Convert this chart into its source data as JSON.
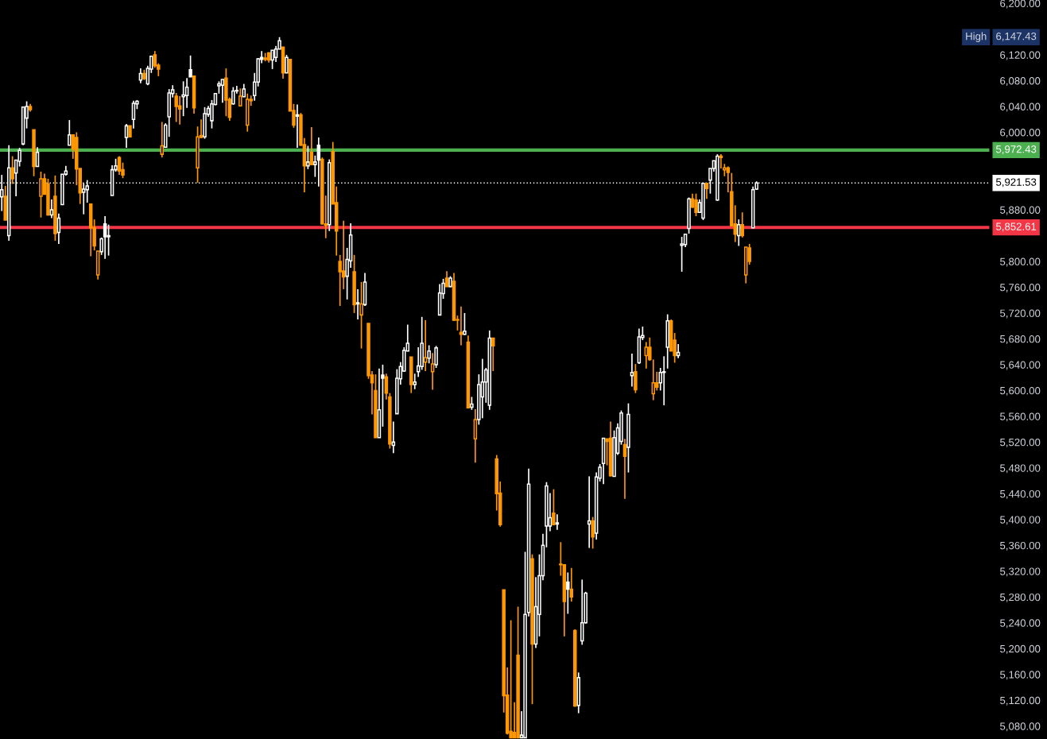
{
  "chart_data": {
    "type": "candlestick",
    "categories": [
      null,
      null,
      null,
      null,
      null,
      null,
      null,
      null,
      null,
      null,
      null,
      null,
      null,
      null,
      null,
      null,
      null,
      null,
      null,
      null,
      null,
      null,
      null,
      null,
      null,
      null,
      null,
      null,
      null,
      null,
      null,
      null,
      null,
      null,
      null,
      null,
      null,
      null,
      null,
      null,
      null,
      null,
      null,
      null,
      null,
      null,
      null,
      null,
      null,
      null,
      null,
      null,
      null,
      null,
      null,
      null,
      null,
      null,
      null,
      null,
      null,
      null,
      null,
      null,
      null,
      null,
      null,
      null,
      null,
      null,
      null,
      null,
      null,
      null,
      null,
      null,
      null,
      null,
      null,
      null,
      null,
      null,
      null,
      null,
      null,
      null,
      null,
      null,
      null,
      null,
      null,
      null,
      null,
      null,
      null,
      null,
      null,
      null,
      null,
      null,
      null,
      null,
      null,
      null,
      null,
      null,
      null,
      null,
      null,
      null,
      null,
      null,
      null,
      null,
      null,
      null,
      null,
      null,
      null,
      null,
      null,
      null,
      null,
      null,
      null,
      null,
      null,
      null,
      null,
      null,
      null,
      null,
      null,
      null,
      null,
      null,
      null,
      null,
      null,
      null,
      null,
      null,
      null,
      null,
      null,
      null,
      null,
      null,
      null,
      null,
      null,
      null,
      null,
      null,
      null,
      null,
      null,
      null,
      null,
      null,
      null,
      null,
      null,
      null,
      null,
      null,
      null,
      null,
      null,
      null,
      null,
      null,
      null,
      null,
      null,
      null,
      null,
      null,
      null,
      null,
      null,
      null,
      null,
      null,
      null,
      null,
      null,
      null,
      null,
      null,
      null,
      null,
      null,
      null,
      null,
      null,
      null,
      null,
      null,
      null,
      null,
      null,
      null,
      null,
      null,
      null,
      null,
      null,
      null,
      null,
      null,
      null,
      null,
      null,
      null,
      null,
      null,
      null,
      null,
      null,
      null,
      null,
      null,
      null,
      null,
      null,
      null,
      null,
      null,
      null,
      null,
      null,
      null,
      null,
      null,
      null,
      null,
      null,
      null,
      null,
      null,
      null,
      null,
      null,
      null,
      null,
      null,
      null,
      null,
      null,
      null,
      null,
      null,
      null,
      null,
      null,
      null,
      null,
      null,
      null,
      null,
      null,
      null,
      null,
      null,
      null,
      null,
      null,
      null,
      null,
      null,
      null,
      null,
      null,
      null,
      null,
      null,
      null
    ],
    "ohlc": [
      [
        5900,
        5934,
        5878,
        5911
      ],
      [
        5901,
        5917,
        5864,
        5864
      ],
      [
        5840,
        5980,
        5832,
        5945
      ],
      [
        5945,
        5963,
        5920,
        5928
      ],
      [
        5937,
        5957,
        5901,
        5957
      ],
      [
        5955,
        5976,
        5947,
        5972
      ],
      [
        5982,
        6039,
        5980,
        6039
      ],
      [
        6022,
        6048,
        6006,
        6040
      ],
      [
        6040,
        6044,
        6032,
        6035
      ],
      [
        6004,
        6004,
        5932,
        5947
      ],
      [
        5947,
        5977,
        5947,
        5969
      ],
      [
        5901,
        5939,
        5868,
        5928
      ],
      [
        5928,
        5936,
        5904,
        5904
      ],
      [
        5920,
        5928,
        5871,
        5872
      ],
      [
        5872,
        5896,
        5867,
        5880
      ],
      [
        5901,
        5933,
        5832,
        5843
      ],
      [
        5845,
        5874,
        5827,
        5867
      ],
      [
        5888,
        5935,
        5888,
        5935
      ],
      [
        5935,
        5948,
        5933,
        5940
      ],
      [
        5980,
        6019,
        5980,
        5996
      ],
      [
        5996,
        5996,
        5959,
        5974
      ],
      [
        5992,
        6000,
        5918,
        5943
      ],
      [
        5944,
        5944,
        5889,
        5906
      ],
      [
        5907,
        5921,
        5873,
        5912
      ],
      [
        5911,
        5926,
        5891,
        5917
      ],
      [
        5889,
        5889,
        5808,
        5852
      ],
      [
        5852,
        5865,
        5817,
        5824
      ],
      [
        5779,
        5816,
        5772,
        5816
      ],
      [
        5815,
        5837,
        5810,
        5835
      ],
      [
        5858,
        5870,
        5804,
        5838
      ],
      [
        5838,
        5857,
        5809,
        5840
      ],
      [
        5902,
        5949,
        5902,
        5942
      ],
      [
        5942,
        5959,
        5939,
        5948
      ],
      [
        5961,
        5963,
        5934,
        5940
      ],
      [
        5942,
        5953,
        5929,
        5934
      ],
      [
        5992,
        6013,
        5976,
        6010
      ],
      [
        6010,
        6010,
        5993,
        5993
      ],
      [
        6020,
        6049,
        6006,
        6045
      ],
      [
        6044,
        6050,
        6036,
        6048
      ],
      [
        6081,
        6099,
        6076,
        6091
      ],
      [
        6091,
        6097,
        6081,
        6083
      ],
      [
        6075,
        6103,
        6073,
        6099
      ],
      [
        6098,
        6118,
        6092,
        6118
      ],
      [
        6120,
        6126,
        6100,
        6103
      ],
      [
        6104,
        6107,
        6087,
        6098
      ],
      [
        5966,
        6016,
        5961,
        5979
      ],
      [
        5977,
        6014,
        5977,
        6011
      ],
      [
        6024,
        6067,
        5993,
        6061
      ],
      [
        6060,
        6073,
        6054,
        6066
      ],
      [
        6056,
        6061,
        6016,
        6040
      ],
      [
        6041,
        6056,
        6012,
        6036
      ],
      [
        6055,
        6079,
        6025,
        6058
      ],
      [
        6057,
        6084,
        6038,
        6070
      ],
      [
        6097,
        6119,
        6086,
        6086
      ],
      [
        6087,
        6088,
        6029,
        6038
      ],
      [
        5945,
        6009,
        5922,
        5993
      ],
      [
        5995,
        6020,
        5991,
        5992
      ],
      [
        5993,
        6039,
        5990,
        6029
      ],
      [
        6028,
        6041,
        6024,
        6037
      ],
      [
        6018,
        6050,
        6006,
        6044
      ],
      [
        6043,
        6061,
        6042,
        6060
      ],
      [
        6072,
        6079,
        6060,
        6075
      ],
      [
        6073,
        6082,
        6046,
        6082
      ],
      [
        6084,
        6099,
        6025,
        6050
      ],
      [
        6051,
        6054,
        6018,
        6023
      ],
      [
        6044,
        6070,
        6043,
        6064
      ],
      [
        6064,
        6072,
        6060,
        6065
      ],
      [
        6041,
        6068,
        6040,
        6056
      ],
      [
        6055,
        6075,
        6055,
        6067
      ],
      [
        6011,
        6060,
        6001,
        6051
      ],
      [
        6051,
        6057,
        6041,
        6049
      ],
      [
        6057,
        6092,
        6049,
        6078
      ],
      [
        6078,
        6115,
        6071,
        6114
      ],
      [
        6116,
        6126,
        6107,
        6113
      ],
      [
        6115,
        6123,
        6110,
        6113
      ],
      [
        6123,
        6124,
        6108,
        6112
      ],
      [
        6112,
        6127,
        6098,
        6127
      ],
      [
        6116,
        6134,
        6109,
        6129
      ],
      [
        6129,
        6147.43,
        6129,
        6142
      ],
      [
        6132,
        6132,
        6083,
        6092
      ],
      [
        6092,
        6120,
        6092,
        6116
      ],
      [
        6113,
        6113,
        6033,
        6033
      ],
      [
        6034,
        6044,
        6007,
        6011
      ],
      [
        6027,
        6043,
        5976,
        6025
      ],
      [
        6027,
        6030,
        5979,
        5980
      ],
      [
        5981,
        5991,
        5907,
        5948
      ],
      [
        5948,
        5979,
        5943,
        5954
      ],
      [
        5969,
        6008,
        5950,
        5950
      ],
      [
        5950,
        5964,
        5931,
        5954
      ],
      [
        5980,
        5992,
        5916,
        5957
      ],
      [
        5958,
        5961,
        5857,
        5858
      ],
      [
        5858,
        5902,
        5836,
        5856
      ],
      [
        5857,
        5958,
        5847,
        5953
      ],
      [
        5970,
        5985,
        5889,
        5889
      ],
      [
        5891,
        5916,
        5809,
        5847
      ],
      [
        5800,
        5810,
        5731,
        5784
      ],
      [
        5785,
        5863,
        5757,
        5776
      ],
      [
        5777,
        5821,
        5741,
        5803
      ],
      [
        5801,
        5859,
        5790,
        5841
      ],
      [
        5784,
        5810,
        5720,
        5733
      ],
      [
        5734,
        5757,
        5710,
        5736
      ],
      [
        5717,
        5768,
        5665,
        5734
      ],
      [
        5733,
        5782,
        5731,
        5768
      ],
      [
        5704,
        5704,
        5618,
        5623
      ],
      [
        5624,
        5630,
        5563,
        5612
      ],
      [
        5600,
        5625,
        5527,
        5527
      ],
      [
        5527,
        5634,
        5527,
        5570
      ],
      [
        5624,
        5640,
        5544,
        5619
      ],
      [
        5621,
        5626,
        5586,
        5596
      ],
      [
        5590,
        5596,
        5510,
        5517
      ],
      [
        5515,
        5552,
        5503,
        5520
      ],
      [
        5564,
        5633,
        5564,
        5619
      ],
      [
        5618,
        5644,
        5609,
        5637
      ],
      [
        5630,
        5667,
        5629,
        5662
      ],
      [
        5661,
        5702,
        5661,
        5673
      ],
      [
        5652,
        5652,
        5596,
        5609
      ],
      [
        5609,
        5626,
        5602,
        5613
      ],
      [
        5629,
        5667,
        5621,
        5638
      ],
      [
        5637,
        5714,
        5632,
        5673
      ],
      [
        5644,
        5709,
        5630,
        5651
      ],
      [
        5650,
        5670,
        5642,
        5661
      ],
      [
        5629,
        5658,
        5601,
        5641
      ],
      [
        5640,
        5669,
        5635,
        5666
      ],
      [
        5717,
        5765,
        5717,
        5751
      ],
      [
        5750,
        5773,
        5742,
        5766
      ],
      [
        5774,
        5785,
        5761,
        5761
      ],
      [
        5761,
        5777,
        5760,
        5774
      ],
      [
        5769,
        5782,
        5708,
        5709
      ],
      [
        5710,
        5716,
        5693,
        5709
      ],
      [
        5690,
        5730,
        5670,
        5687
      ],
      [
        5687,
        5720,
        5686,
        5692
      ],
      [
        5675,
        5685,
        5573,
        5573
      ],
      [
        5574,
        5590,
        5570,
        5579
      ],
      [
        5525,
        5571,
        5488,
        5555
      ],
      [
        5555,
        5625,
        5547,
        5609
      ],
      [
        5590,
        5649,
        5557,
        5613
      ],
      [
        5613,
        5635,
        5581,
        5632
      ],
      [
        5577,
        5693,
        5570,
        5681
      ],
      [
        5681,
        5681,
        5630,
        5669
      ],
      [
        5494,
        5500,
        5414,
        5440
      ],
      [
        5441,
        5459,
        5389,
        5392
      ],
      [
        5291,
        5291,
        5101,
        5127
      ],
      [
        5128,
        5171,
        5067,
        5069
      ],
      [
        5072,
        5244,
        5062,
        5062
      ],
      [
        5070,
        5117,
        5062,
        5062
      ],
      [
        5190,
        5265,
        5062,
        5062
      ],
      [
        5062,
        5103,
        5062,
        5066
      ],
      [
        5062,
        5350,
        5062,
        5253
      ],
      [
        5256,
        5479,
        5250,
        5455
      ],
      [
        5339,
        5346,
        5114,
        5207
      ],
      [
        5207,
        5311,
        5201,
        5265
      ],
      [
        5253,
        5346,
        5219,
        5313
      ],
      [
        5313,
        5378,
        5306,
        5360
      ],
      [
        5390,
        5458,
        5357,
        5452
      ],
      [
        5390,
        5441,
        5382,
        5403
      ],
      [
        5410,
        5447,
        5391,
        5392
      ],
      [
        5393,
        5408,
        5384,
        5395
      ],
      [
        5331,
        5365,
        5313,
        5330
      ],
      [
        5330,
        5330,
        5219,
        5273
      ],
      [
        5303,
        5318,
        5254,
        5292
      ],
      [
        5292,
        5325,
        5273,
        5280
      ],
      [
        5228,
        5230,
        5110,
        5111
      ],
      [
        5112,
        5163,
        5100,
        5155
      ],
      [
        5212,
        5307,
        5206,
        5240
      ],
      [
        5240,
        5288,
        5239,
        5286
      ],
      [
        5393,
        5467,
        5356,
        5398
      ],
      [
        5398,
        5404,
        5355,
        5373
      ],
      [
        5379,
        5473,
        5369,
        5466
      ],
      [
        5464,
        5486,
        5459,
        5481
      ],
      [
        5487,
        5526,
        5455,
        5526
      ],
      [
        5525,
        5525,
        5484,
        5521
      ],
      [
        5526,
        5552,
        5467,
        5468
      ],
      [
        5467,
        5538,
        5467,
        5527
      ],
      [
        5503,
        5549,
        5500,
        5542
      ],
      [
        5521,
        5569,
        5516,
        5565
      ],
      [
        5516,
        5525,
        5432,
        5498
      ],
      [
        5512,
        5580,
        5473,
        5563
      ],
      [
        5623,
        5657,
        5606,
        5628
      ],
      [
        5629,
        5641,
        5596,
        5601
      ],
      [
        5643,
        5696,
        5641,
        5683
      ],
      [
        5682,
        5699,
        5678,
        5685
      ],
      [
        5654,
        5675,
        5634,
        5667
      ],
      [
        5667,
        5682,
        5646,
        5648
      ],
      [
        5595,
        5648,
        5585,
        5612
      ],
      [
        5612,
        5629,
        5600,
        5605
      ],
      [
        5612,
        5635,
        5600,
        5628
      ],
      [
        5628,
        5653,
        5577,
        5629
      ],
      [
        5667,
        5718,
        5634,
        5708
      ],
      [
        5708,
        5710,
        5661,
        5661
      ],
      [
        5678,
        5689,
        5643,
        5654
      ],
      [
        5654,
        5672,
        5650,
        5659
      ],
      [
        5825,
        5838,
        5784,
        5827
      ],
      [
        5826,
        5843,
        5822,
        5842
      ],
      [
        5851,
        5899,
        5843,
        5897
      ],
      [
        5897,
        5905,
        5883,
        5884
      ],
      [
        5895,
        5905,
        5870,
        5876
      ],
      [
        5876,
        5896,
        5876,
        5891
      ],
      [
        5867,
        5922,
        5864,
        5921
      ],
      [
        5921,
        5921,
        5897,
        5913
      ],
      [
        5926,
        5944,
        5905,
        5944
      ],
      [
        5944,
        5956,
        5939,
        5956
      ],
      [
        5895,
        5966,
        5894,
        5963
      ],
      [
        5963,
        5966,
        5944,
        5961
      ],
      [
        5942,
        5951,
        5932,
        5945
      ],
      [
        5945,
        5947,
        5907,
        5938
      ],
      [
        5908,
        5937,
        5855,
        5855
      ],
      [
        5858,
        5887,
        5830,
        5842
      ],
      [
        5840,
        5865,
        5824,
        5857
      ],
      [
        5857,
        5876,
        5837,
        5840
      ],
      [
        5779,
        5822,
        5766,
        5822
      ],
      [
        5821,
        5827,
        5795,
        5800
      ],
      [
        5852,
        5916,
        5852,
        5911
      ],
      [
        5912,
        5924,
        5911,
        5921.53
      ],
      null,
      null,
      null,
      null,
      null,
      null,
      null,
      null,
      null,
      null,
      null,
      null,
      null,
      null,
      null,
      null,
      null,
      null,
      null,
      null,
      null,
      null,
      null,
      null,
      null,
      null,
      null,
      null,
      null,
      null,
      null,
      null,
      null,
      null,
      null,
      null,
      null,
      null,
      null,
      null,
      null,
      null,
      null,
      null,
      null,
      null,
      null,
      null,
      null,
      null,
      null,
      null,
      null,
      null,
      null,
      null,
      null,
      null,
      null,
      null,
      null,
      null,
      null,
      null,
      null
    ],
    "colors": [
      "#ffffff",
      "#ff9800",
      "#ffffff",
      "#ff9800",
      "#ffffff",
      "#ffffff",
      "#ffffff",
      "#ffffff",
      "#ff9800",
      "#ff9800",
      "#ffffff",
      "#ff9800",
      "#ff9800",
      "#ff9800",
      "#ffffff",
      "#ff9800",
      "#ffffff",
      "#ffffff",
      "#ffffff",
      "#ffffff",
      "#ff9800",
      "#ff9800",
      "#ff9800",
      "#ffffff",
      "#ffffff",
      "#ff9800",
      "#ff9800",
      "#ff9800",
      "#ffffff",
      "#ffffff",
      "#ffffff",
      "#ffffff",
      "#ffffff",
      "#ff9800",
      "#ff9800",
      "#ffffff",
      "#ff9800",
      "#ffffff",
      "#ffffff",
      "#ffffff",
      "#ff9800",
      "#ffffff",
      "#ffffff",
      "#ff9800",
      "#ff9800",
      "#ff9800",
      "#ffffff",
      "#ffffff",
      "#ffffff",
      "#ff9800",
      "#ff9800",
      "#ffffff",
      "#ffffff",
      "#ffffff",
      "#ff9800",
      "#ff9800",
      "#ff9800",
      "#ffffff",
      "#ffffff",
      "#ffffff",
      "#ffffff",
      "#ffffff",
      "#ffffff",
      "#ff9800",
      "#ff9800",
      "#ffffff",
      "#ffffff",
      "#ff9800",
      "#ffffff",
      "#ff9800",
      "#ff9800",
      "#ffffff",
      "#ffffff",
      "#ffffff",
      "#ff9800",
      "#ff9800",
      "#ffffff",
      "#ffffff",
      "#ffffff",
      "#ff9800",
      "#ffffff",
      "#ff9800",
      "#ff9800",
      "#ffffff",
      "#ff9800",
      "#ff9800",
      "#ffffff",
      "#ff9800",
      "#ffffff",
      "#ffffff",
      "#ff9800",
      "#ff9800",
      "#ffffff",
      "#ff9800",
      "#ff9800",
      "#ff9800",
      "#ff9800",
      "#ffffff",
      "#ffffff",
      "#ff9800",
      "#ffffff",
      "#ff9800",
      "#ffffff",
      "#ff9800",
      "#ff9800",
      "#ff9800",
      "#ffffff",
      "#ffffff",
      "#ff9800",
      "#ff9800",
      "#ffffff",
      "#ffffff",
      "#ffffff",
      "#ffffff",
      "#ffffff",
      "#ff9800",
      "#ffffff",
      "#ffffff",
      "#ffffff",
      "#ff9800",
      "#ffffff",
      "#ff9800",
      "#ffffff",
      "#ffffff",
      "#ffffff",
      "#ff9800",
      "#ffffff",
      "#ff9800",
      "#ff9800",
      "#ff9800",
      "#ffffff",
      "#ff9800",
      "#ffffff",
      "#ff9800",
      "#ffffff",
      "#ffffff",
      "#ffffff",
      "#ffffff",
      "#ff9800",
      "#ff9800",
      "#ff9800",
      "#ff9800",
      "#ff9800",
      "#ff9800",
      "#ff9800",
      "#ff9800",
      "#ffffff",
      "#ffffff",
      "#ffffff",
      "#ff9800",
      "#ffffff",
      "#ffffff",
      "#ffffff",
      "#ffffff",
      "#ffffff",
      "#ff9800",
      "#ffffff",
      "#ff9800",
      "#ff9800",
      "#ffffff",
      "#ff9800",
      "#ff9800",
      "#ffffff",
      "#ffffff",
      "#ffffff",
      "#ffffff",
      "#ff9800",
      "#ffffff",
      "#ffffff",
      "#ffffff",
      "#ff9800",
      "#ff9800",
      "#ffffff",
      "#ffffff",
      "#ffffff",
      "#ff9800",
      "#ffffff",
      "#ffffff",
      "#ff9800",
      "#ffffff",
      "#ffffff",
      "#ff9800",
      "#ff9800",
      "#ff9800",
      "#ff9800",
      "#ffffff",
      "#ffffff",
      "#ffffff",
      "#ff9800",
      "#ff9800",
      "#ffffff",
      "#ffffff",
      "#ffffff",
      "#ffffff",
      "#ff9800",
      "#ff9800",
      "#ffffff",
      "#ffffff",
      "#ff9800",
      "#ffffff",
      "#ffffff",
      "#ffffff",
      "#ff9800",
      "#ff9800",
      "#ff9800",
      "#ff9800",
      "#ff9800",
      "#ffffff",
      "#ff9800",
      "#ff9800",
      "#ff9800",
      "#ffffff",
      "#ffffff",
      null,
      null,
      null,
      null,
      null,
      null,
      null,
      null,
      null,
      null,
      null,
      null,
      null,
      null,
      null,
      null,
      null,
      null,
      null,
      null,
      null,
      null,
      null,
      null,
      null,
      null,
      null,
      null,
      null,
      null,
      null,
      null,
      null,
      null,
      null,
      null,
      null,
      null,
      null,
      null,
      null,
      null,
      null,
      null,
      null,
      null,
      null,
      null,
      null,
      null,
      null,
      null,
      null,
      null,
      null,
      null,
      null,
      null,
      null,
      null,
      null,
      null,
      null,
      null,
      null
    ],
    "ylim": [
      5060,
      6205
    ],
    "yticks": [
      {
        "value": 5080,
        "label": "5,080.00"
      },
      {
        "value": 5120,
        "label": "5,120.00"
      },
      {
        "value": 5160,
        "label": "5,160.00"
      },
      {
        "value": 5200,
        "label": "5,200.00"
      },
      {
        "value": 5240,
        "label": "5,240.00"
      },
      {
        "value": 5280,
        "label": "5,280.00"
      },
      {
        "value": 5320,
        "label": "5,320.00"
      },
      {
        "value": 5360,
        "label": "5,360.00"
      },
      {
        "value": 5400,
        "label": "5,400.00"
      },
      {
        "value": 5440,
        "label": "5,440.00"
      },
      {
        "value": 5480,
        "label": "5,480.00"
      },
      {
        "value": 5520,
        "label": "5,520.00"
      },
      {
        "value": 5560,
        "label": "5,560.00"
      },
      {
        "value": 5600,
        "label": "5,600.00"
      },
      {
        "value": 5640,
        "label": "5,640.00"
      },
      {
        "value": 5680,
        "label": "5,680.00"
      },
      {
        "value": 5720,
        "label": "5,720.00"
      },
      {
        "value": 5760,
        "label": "5,760.00"
      },
      {
        "value": 5800,
        "label": "5,800.00"
      },
      {
        "value": 5880,
        "label": "5,880.00"
      },
      {
        "value": 6000,
        "label": "6,000.00"
      },
      {
        "value": 6040,
        "label": "6,040.00"
      },
      {
        "value": 6080,
        "label": "6,080.00"
      },
      {
        "value": 6120,
        "label": "6,120.00"
      },
      {
        "value": 6200,
        "label": "6,200.00"
      }
    ],
    "ref_lines": [
      {
        "axis": "y",
        "value": 5972.43,
        "label": "5,972.43",
        "color": "#4caf50",
        "line_style": "solid"
      },
      {
        "axis": "y",
        "value": 5852.61,
        "label": "5,852.61",
        "color": "#f23645",
        "line_style": "solid"
      },
      {
        "axis": "y",
        "value": 5921.53,
        "label": "5,921.53",
        "color": "#ffffff",
        "line_style": "dotted"
      }
    ],
    "annotations": [
      "High",
      "6,147.43"
    ],
    "grid": false,
    "tick_labels": "y"
  }
}
